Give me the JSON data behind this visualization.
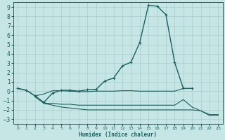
{
  "xlabel": "Humidex (Indice chaleur)",
  "xlim": [
    -0.5,
    23.5
  ],
  "ylim": [
    -3.5,
    9.5
  ],
  "yticks": [
    -3,
    -2,
    -1,
    0,
    1,
    2,
    3,
    4,
    5,
    6,
    7,
    8,
    9
  ],
  "xticks": [
    0,
    1,
    2,
    3,
    4,
    5,
    6,
    7,
    8,
    9,
    10,
    11,
    12,
    13,
    14,
    15,
    16,
    17,
    18,
    19,
    20,
    21,
    22,
    23
  ],
  "bg_color": "#c6e6e6",
  "grid_color": "#a8cccc",
  "line_color": "#1a6060",
  "lines": [
    {
      "x": [
        0,
        1,
        2,
        3,
        4,
        5,
        6,
        7,
        8,
        9,
        10,
        11,
        12,
        13,
        14,
        15,
        16,
        17,
        18,
        19,
        20
      ],
      "y": [
        0.3,
        0.1,
        -0.5,
        -1.2,
        -0.2,
        0.1,
        0.1,
        0.0,
        0.15,
        0.2,
        1.1,
        1.4,
        2.7,
        3.1,
        5.2,
        9.2,
        9.1,
        8.2,
        3.1,
        0.3,
        0.3
      ],
      "marker": true,
      "linewidth": 1.0
    },
    {
      "x": [
        0,
        1,
        2,
        3,
        4,
        5,
        6,
        7,
        8,
        9,
        10,
        11,
        12,
        13,
        14,
        15,
        16,
        17,
        18,
        19
      ],
      "y": [
        0.3,
        0.1,
        -0.5,
        -0.3,
        0.05,
        0.05,
        0.0,
        -0.05,
        -0.05,
        0.0,
        0.0,
        0.0,
        0.05,
        0.05,
        0.0,
        0.0,
        0.0,
        0.0,
        0.0,
        0.3
      ],
      "marker": false,
      "linewidth": 0.8
    },
    {
      "x": [
        2,
        3,
        4,
        5,
        6,
        7,
        8,
        9,
        10,
        11,
        12,
        13,
        14,
        15,
        16,
        17,
        18,
        19,
        20,
        21,
        22,
        23
      ],
      "y": [
        -0.6,
        -1.3,
        -1.3,
        -1.4,
        -1.4,
        -1.5,
        -1.5,
        -1.5,
        -1.5,
        -1.5,
        -1.5,
        -1.5,
        -1.5,
        -1.5,
        -1.5,
        -1.5,
        -1.5,
        -0.9,
        -1.7,
        -2.1,
        -2.5,
        -2.5
      ],
      "marker": false,
      "linewidth": 0.8
    },
    {
      "x": [
        3,
        4,
        5,
        6,
        7,
        8,
        9,
        10,
        11,
        12,
        13,
        14,
        15,
        16,
        17,
        18,
        20,
        21,
        22,
        23
      ],
      "y": [
        -1.3,
        -1.5,
        -1.7,
        -1.8,
        -1.9,
        -2.0,
        -2.0,
        -2.0,
        -2.0,
        -2.0,
        -2.0,
        -2.0,
        -2.0,
        -2.0,
        -2.0,
        -2.0,
        -2.0,
        -2.1,
        -2.6,
        -2.6
      ],
      "marker": false,
      "linewidth": 0.8
    }
  ]
}
